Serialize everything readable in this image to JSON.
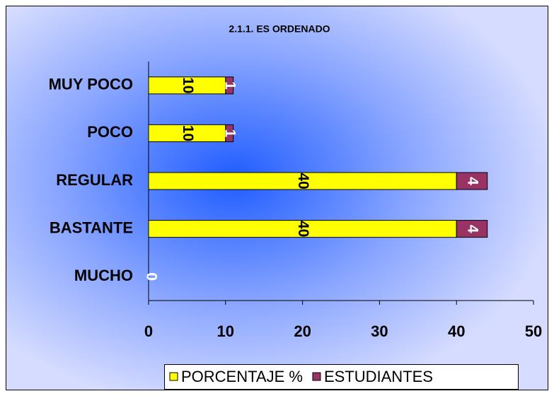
{
  "chart_data": {
    "type": "stacked-barh",
    "title": "2.1.1.  ES ORDENADO",
    "categories": [
      "MUY POCO",
      "POCO",
      "REGULAR",
      "BASTANTE",
      "MUCHO"
    ],
    "series": [
      {
        "name": "PORCENTAJE %",
        "color": "#ffff00",
        "values": [
          10,
          10,
          40,
          40,
          0
        ]
      },
      {
        "name": "ESTUDIANTES",
        "color": "#993366",
        "values": [
          1,
          1,
          4,
          4,
          0
        ]
      }
    ],
    "xlim": [
      0,
      50
    ],
    "xticks": [
      0,
      10,
      20,
      30,
      40,
      50
    ],
    "grid": false,
    "legend": "bottom"
  }
}
